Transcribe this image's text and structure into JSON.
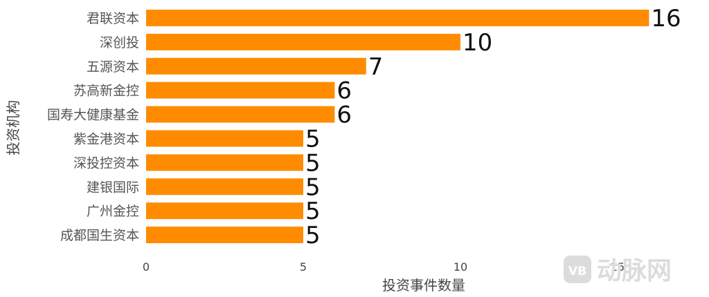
{
  "chart_data": {
    "type": "bar",
    "orientation": "horizontal",
    "categories": [
      "君联资本",
      "深创投",
      "五源资本",
      "苏高新金控",
      "国寿大健康基金",
      "紫金港资本",
      "深投控资本",
      "建银国际",
      "广州金控",
      "成都国生资本"
    ],
    "values": [
      16,
      10,
      7,
      6,
      6,
      5,
      5,
      5,
      5,
      5
    ],
    "xlabel": "投资事件数量",
    "ylabel": "投资机构",
    "xlim": [
      0,
      17.6
    ],
    "xticks": [
      0,
      5,
      10,
      15
    ],
    "bar_color": "#ff8c00",
    "grid": false,
    "data_labels": true
  },
  "watermark": {
    "badge": "VB",
    "text": "动脉网"
  }
}
